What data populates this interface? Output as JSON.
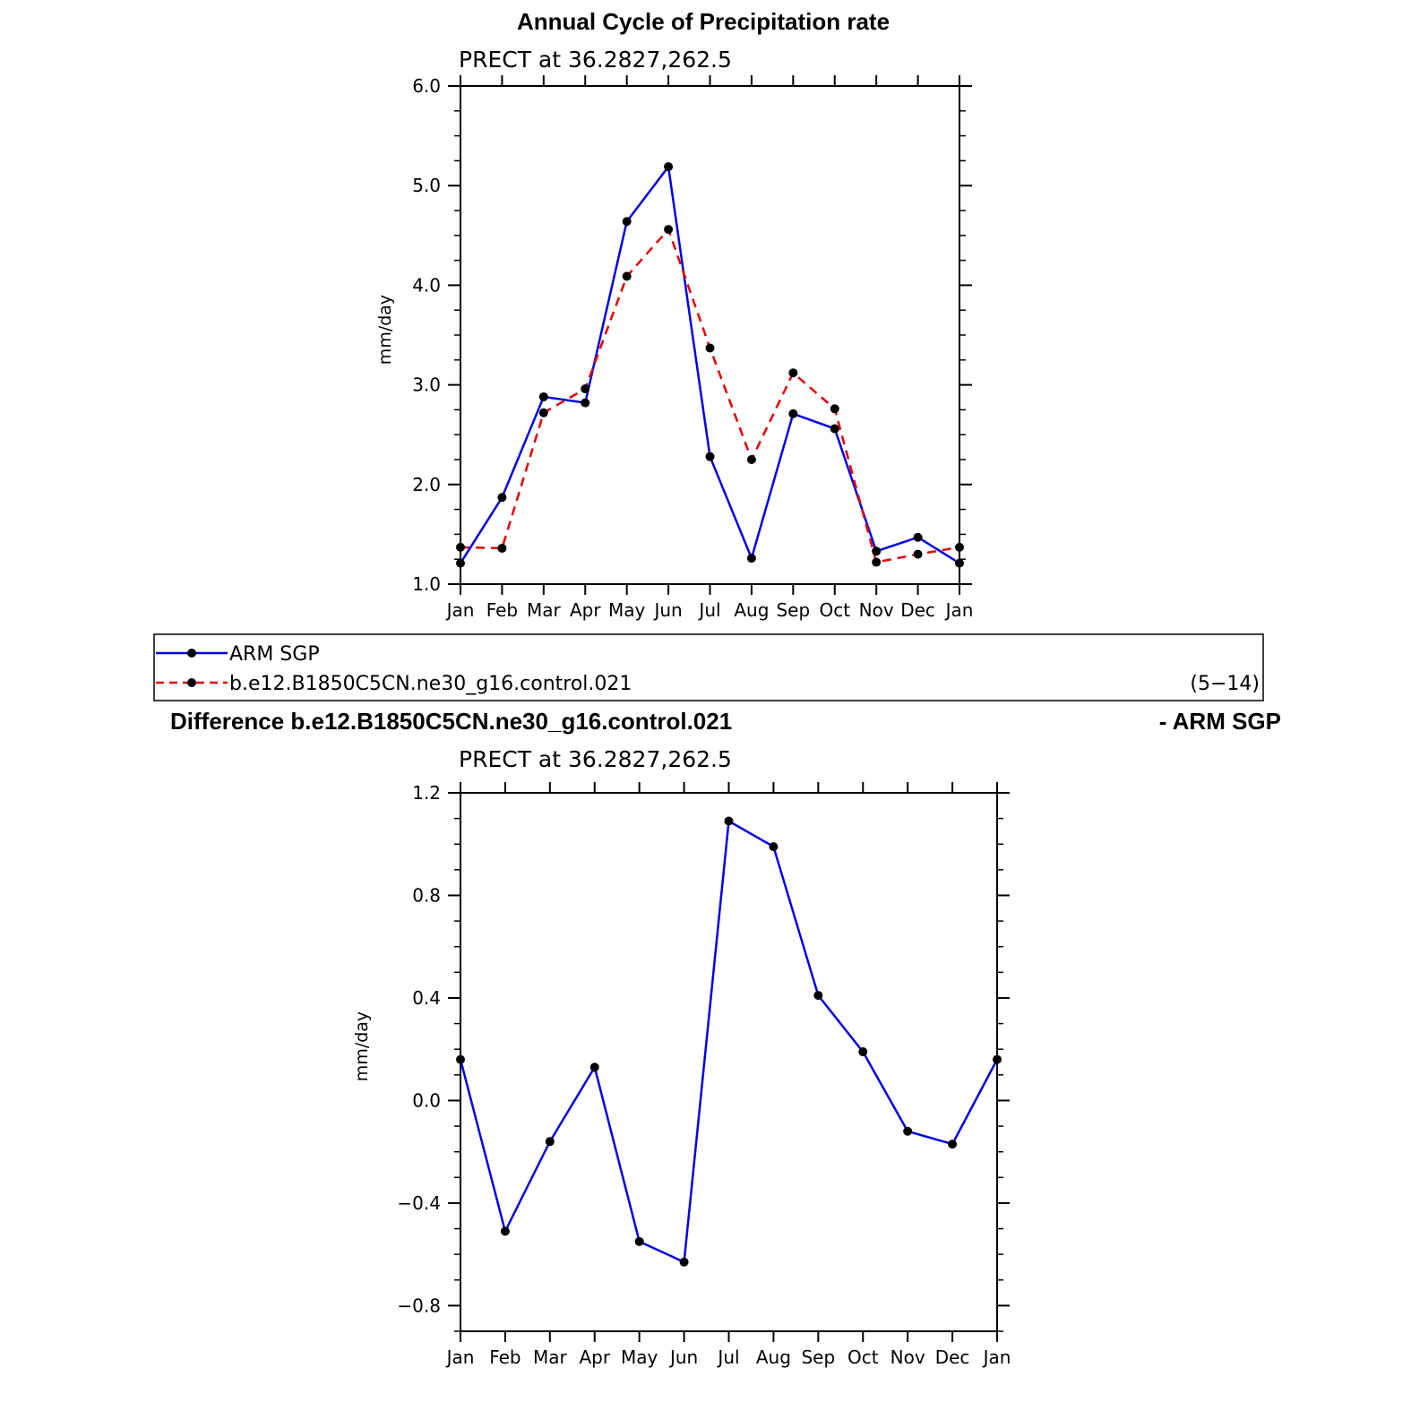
{
  "top_title": "Annual Cycle of Precipitation rate",
  "legend": {
    "items": [
      {
        "label": "ARM SGP",
        "color": "#0000e6",
        "style": "solid"
      },
      {
        "label": "b.e12.B1850C5CN.ne30_g16.control.021",
        "color": "#e60000",
        "style": "dashed"
      }
    ],
    "note": "(5−14)"
  },
  "diff_title_left": "Difference b.e12.B1850C5CN.ne30_g16.control.021",
  "diff_title_right": "- ARM SGP",
  "chart_data": [
    {
      "type": "line",
      "subtitle": "PRECT at 36.2827,262.5",
      "ylabel": "mm/day",
      "xlabel": "",
      "categories": [
        "Jan",
        "Feb",
        "Mar",
        "Apr",
        "May",
        "Jun",
        "Jul",
        "Aug",
        "Sep",
        "Oct",
        "Nov",
        "Dec",
        "Jan"
      ],
      "ylim": [
        1.0,
        6.0
      ],
      "yticks": [
        1.0,
        2.0,
        3.0,
        4.0,
        5.0,
        6.0
      ],
      "ytick_labels": [
        "1.0",
        "2.0",
        "3.0",
        "4.0",
        "5.0",
        "6.0"
      ],
      "series": [
        {
          "name": "ARM SGP",
          "color": "#0000e6",
          "dashed": false,
          "values": [
            1.21,
            1.87,
            2.88,
            2.82,
            4.64,
            5.19,
            2.28,
            1.26,
            2.71,
            2.56,
            1.33,
            1.47,
            1.21
          ]
        },
        {
          "name": "b.e12.B1850C5CN.ne30_g16.control.021",
          "color": "#e60000",
          "dashed": true,
          "values": [
            1.37,
            1.36,
            2.72,
            2.96,
            4.09,
            4.56,
            3.37,
            2.25,
            3.12,
            2.76,
            1.22,
            1.3,
            1.37
          ]
        }
      ],
      "grid": false
    },
    {
      "type": "line",
      "subtitle": "PRECT at 36.2827,262.5",
      "ylabel": "mm/day",
      "xlabel": "",
      "categories": [
        "Jan",
        "Feb",
        "Mar",
        "Apr",
        "May",
        "Jun",
        "Jul",
        "Aug",
        "Sep",
        "Oct",
        "Nov",
        "Dec",
        "Jan"
      ],
      "ylim": [
        -0.9,
        1.2
      ],
      "yticks": [
        -0.8,
        -0.4,
        0.0,
        0.4,
        0.8,
        1.2
      ],
      "ytick_labels": [
        "−0.8",
        "−0.4",
        "0.0",
        "0.4",
        "0.8",
        "1.2"
      ],
      "series": [
        {
          "name": "",
          "color": "#0000e6",
          "dashed": false,
          "values": [
            0.16,
            -0.51,
            -0.16,
            0.13,
            -0.55,
            -0.63,
            1.09,
            0.99,
            0.41,
            0.19,
            -0.12,
            -0.17,
            0.16
          ]
        }
      ],
      "grid": false
    }
  ]
}
